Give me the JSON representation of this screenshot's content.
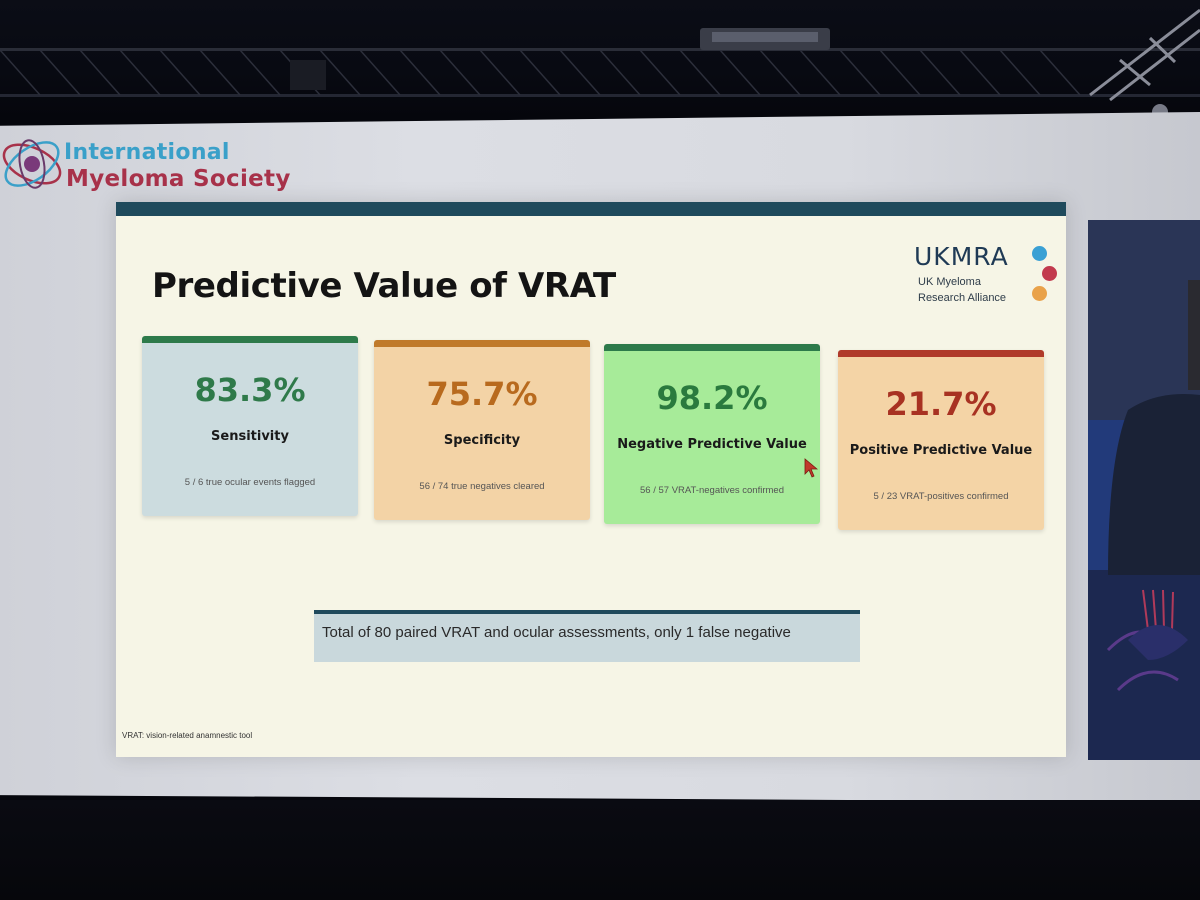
{
  "logo": {
    "line1": "International",
    "line2": "Myeloma Society"
  },
  "slide": {
    "title": "Predictive Value of VRAT",
    "partner": {
      "name": "UKMRA",
      "subtitle_line1": "UK Myeloma",
      "subtitle_line2": "Research Alliance"
    },
    "cards": [
      {
        "value": "83.3%",
        "label": "Sensitivity",
        "detail": "5 / 6 true ocular events flagged"
      },
      {
        "value": "75.7%",
        "label": "Specificity",
        "detail": "56 / 74 true negatives cleared"
      },
      {
        "value": "98.2%",
        "label": "Negative Predictive Value",
        "detail": "56 / 57 VRAT-negatives confirmed"
      },
      {
        "value": "21.7%",
        "label": "Positive Predictive Value",
        "detail": "5 / 23 VRAT-positives confirmed"
      }
    ],
    "summary": "Total of 80 paired VRAT and ocular assessments, only 1 false negative",
    "footnote": "VRAT: vision-related anamnestic tool"
  },
  "colors": {
    "slide_accent": "#1f4a5c",
    "sensitivity": "#2f7a4a",
    "specificity": "#b86a1e",
    "npv": "#2a7a3e",
    "ppv": "#a83222",
    "ims_blue": "#3aa0c9",
    "ims_red": "#a8324a"
  }
}
